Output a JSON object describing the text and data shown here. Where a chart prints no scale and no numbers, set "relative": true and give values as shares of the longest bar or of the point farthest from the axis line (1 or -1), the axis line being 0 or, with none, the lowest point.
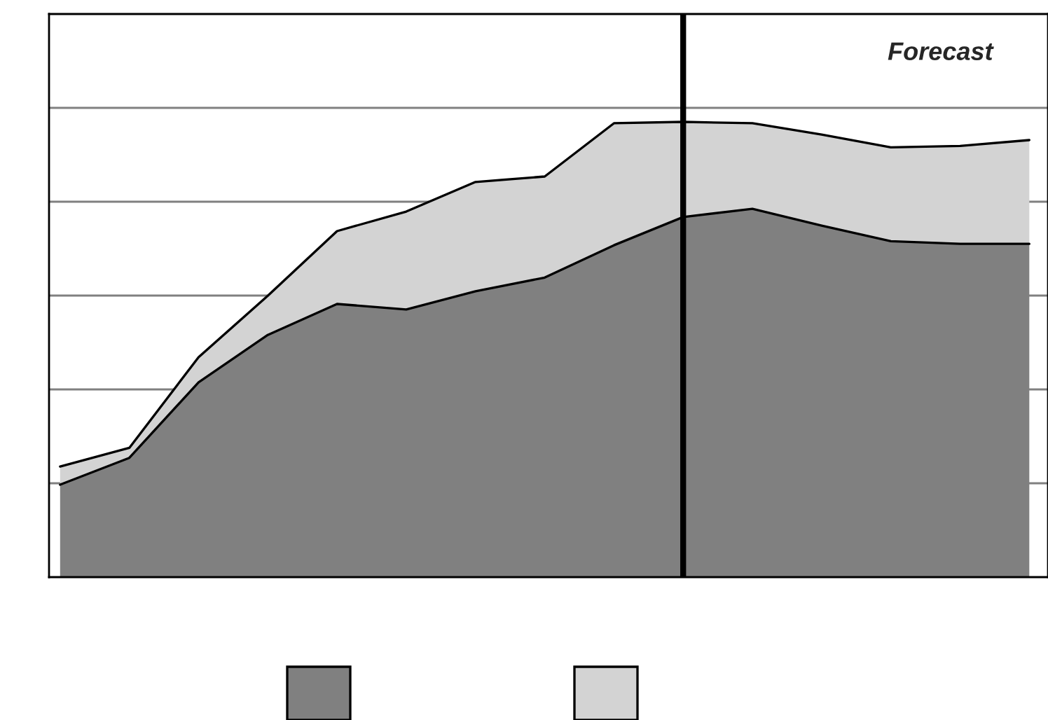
{
  "chart_data": {
    "type": "area",
    "stacked": true,
    "relative": true,
    "categories": [
      null,
      null,
      null,
      null,
      null,
      null,
      null,
      null,
      null,
      null,
      null,
      null,
      null,
      null,
      null
    ],
    "series": [
      {
        "color": "#808080",
        "values": [
          0.203,
          0.262,
          0.428,
          0.532,
          0.6,
          0.588,
          0.628,
          0.658,
          0.729,
          0.791,
          0.809,
          0.772,
          0.738,
          0.732,
          0.732
        ]
      },
      {
        "color": "#d3d3d3",
        "values": [
          0.04,
          0.022,
          0.055,
          0.086,
          0.16,
          0.215,
          0.24,
          0.222,
          0.268,
          0.209,
          0.188,
          0.2,
          0.206,
          0.215,
          0.228
        ]
      }
    ],
    "annotations": [
      "Forecast"
    ],
    "grid": "y"
  }
}
